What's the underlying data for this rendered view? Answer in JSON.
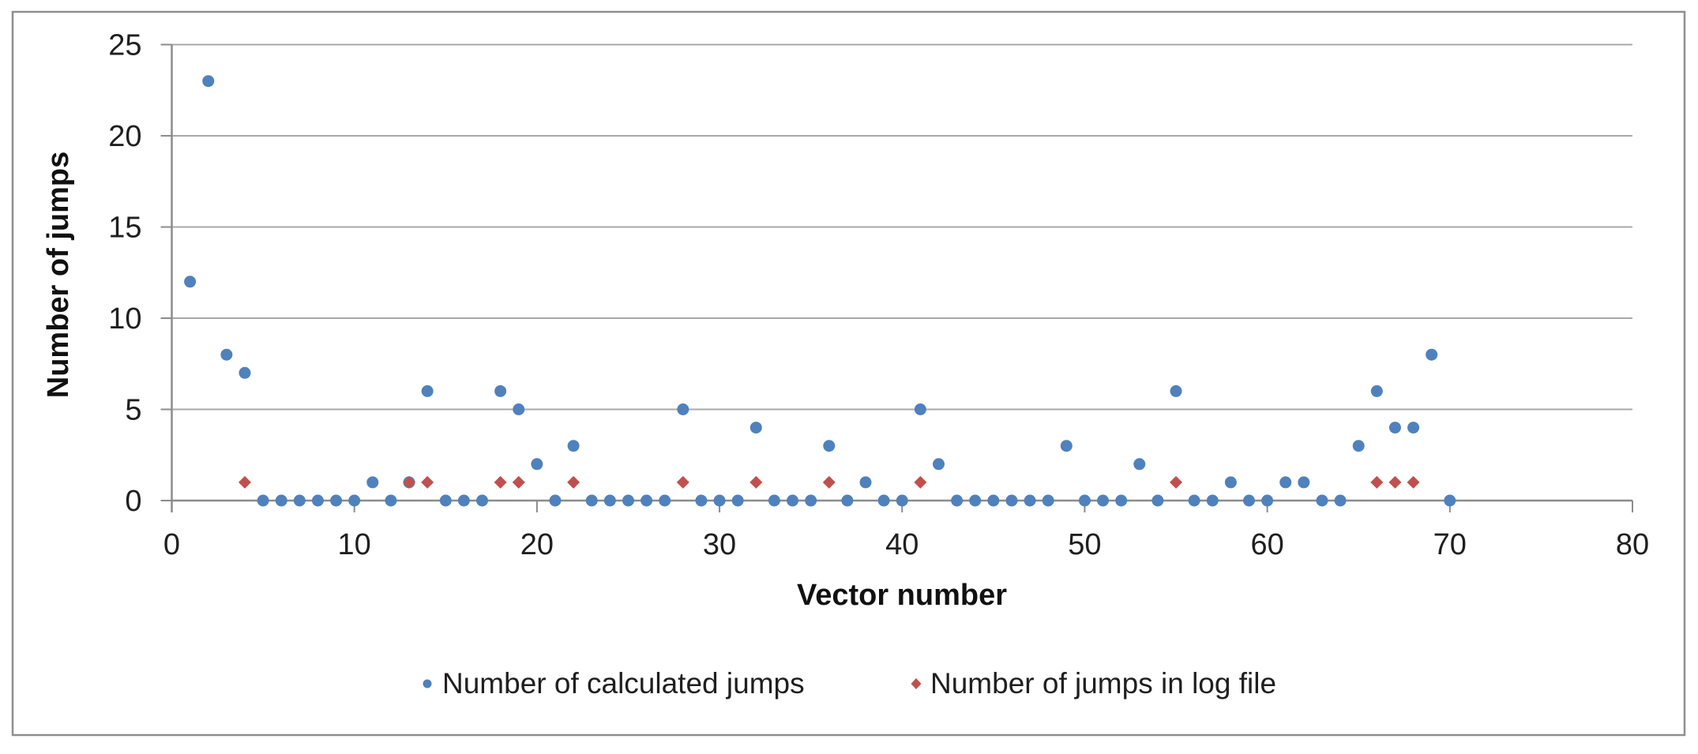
{
  "figure": {
    "background_color": "#ffffff",
    "border_color": "#8f8f8f"
  },
  "chart_data": {
    "type": "scatter",
    "title": "",
    "xlabel": "Vector number",
    "ylabel": "Number of jumps",
    "xlim": [
      0,
      80
    ],
    "ylim": [
      0,
      25
    ],
    "x_ticks": [
      0,
      10,
      20,
      30,
      40,
      50,
      60,
      70,
      80
    ],
    "y_ticks": [
      0,
      5,
      10,
      15,
      20,
      25
    ],
    "grid": "horizontal",
    "gridline_color": "#a8a8a8",
    "axis_color": "#8c8c8c",
    "text_color": "#1f1f1f",
    "legend_position": "bottom center",
    "series": [
      {
        "name": "Number of calculated jumps",
        "marker": "circle",
        "color": "#4F81BD",
        "points": [
          [
            1,
            12
          ],
          [
            2,
            23
          ],
          [
            3,
            8
          ],
          [
            4,
            7
          ],
          [
            5,
            0
          ],
          [
            6,
            0
          ],
          [
            7,
            0
          ],
          [
            8,
            0
          ],
          [
            9,
            0
          ],
          [
            10,
            0
          ],
          [
            11,
            1
          ],
          [
            12,
            0
          ],
          [
            13,
            1
          ],
          [
            14,
            6
          ],
          [
            15,
            0
          ],
          [
            16,
            0
          ],
          [
            17,
            0
          ],
          [
            18,
            6
          ],
          [
            19,
            5
          ],
          [
            20,
            2
          ],
          [
            21,
            0
          ],
          [
            22,
            3
          ],
          [
            23,
            0
          ],
          [
            24,
            0
          ],
          [
            25,
            0
          ],
          [
            26,
            0
          ],
          [
            27,
            0
          ],
          [
            28,
            5
          ],
          [
            29,
            0
          ],
          [
            30,
            0
          ],
          [
            31,
            0
          ],
          [
            32,
            4
          ],
          [
            33,
            0
          ],
          [
            34,
            0
          ],
          [
            35,
            0
          ],
          [
            36,
            3
          ],
          [
            37,
            0
          ],
          [
            38,
            1
          ],
          [
            39,
            0
          ],
          [
            40,
            0
          ],
          [
            41,
            5
          ],
          [
            42,
            2
          ],
          [
            43,
            0
          ],
          [
            44,
            0
          ],
          [
            45,
            0
          ],
          [
            46,
            0
          ],
          [
            47,
            0
          ],
          [
            48,
            0
          ],
          [
            49,
            3
          ],
          [
            50,
            0
          ],
          [
            51,
            0
          ],
          [
            52,
            0
          ],
          [
            53,
            2
          ],
          [
            54,
            0
          ],
          [
            55,
            6
          ],
          [
            56,
            0
          ],
          [
            57,
            0
          ],
          [
            58,
            1
          ],
          [
            59,
            0
          ],
          [
            60,
            0
          ],
          [
            61,
            1
          ],
          [
            62,
            1
          ],
          [
            63,
            0
          ],
          [
            64,
            0
          ],
          [
            65,
            3
          ],
          [
            66,
            6
          ],
          [
            67,
            4
          ],
          [
            68,
            4
          ],
          [
            69,
            8
          ],
          [
            70,
            0
          ]
        ]
      },
      {
        "name": "Number of jumps in log file",
        "marker": "diamond",
        "color": "#C0504D",
        "points": [
          [
            4,
            1
          ],
          [
            13,
            1
          ],
          [
            14,
            1
          ],
          [
            18,
            1
          ],
          [
            19,
            1
          ],
          [
            22,
            1
          ],
          [
            28,
            1
          ],
          [
            32,
            1
          ],
          [
            36,
            1
          ],
          [
            41,
            1
          ],
          [
            55,
            1
          ],
          [
            66,
            1
          ],
          [
            67,
            1
          ],
          [
            68,
            1
          ]
        ]
      }
    ]
  }
}
